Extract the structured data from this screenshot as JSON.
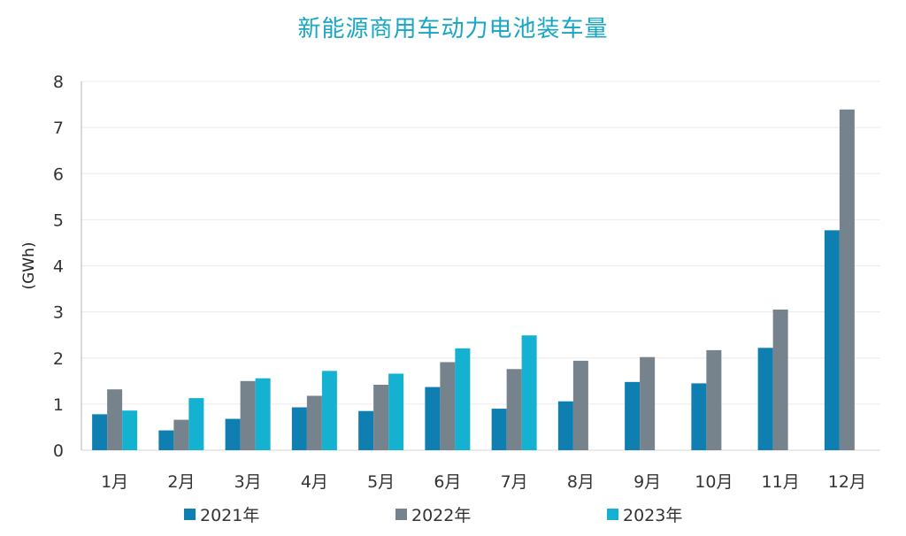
{
  "chart_data": {
    "type": "bar",
    "title": "新能源商用车动力电池装车量",
    "ylabel": "(GWh)",
    "xlabel": "",
    "ylim": [
      0,
      8
    ],
    "yticks": [
      0,
      1,
      2,
      3,
      4,
      5,
      6,
      7,
      8
    ],
    "grid": true,
    "legend_position": "bottom",
    "categories": [
      "1月",
      "2月",
      "3月",
      "4月",
      "5月",
      "6月",
      "7月",
      "8月",
      "9月",
      "10月",
      "11月",
      "12月"
    ],
    "series": [
      {
        "name": "2021年",
        "color": "#0e7fb0",
        "values": [
          0.78,
          0.43,
          0.68,
          0.93,
          0.85,
          1.37,
          0.9,
          1.06,
          1.48,
          1.45,
          2.22,
          4.77
        ]
      },
      {
        "name": "2022年",
        "color": "#76838c",
        "values": [
          1.32,
          0.66,
          1.5,
          1.18,
          1.42,
          1.91,
          1.76,
          1.94,
          2.02,
          2.17,
          3.05,
          7.39
        ]
      },
      {
        "name": "2023年",
        "color": "#14b1d0",
        "values": [
          0.86,
          1.13,
          1.56,
          1.72,
          1.66,
          2.21,
          2.49,
          null,
          null,
          null,
          null,
          null
        ]
      }
    ]
  }
}
